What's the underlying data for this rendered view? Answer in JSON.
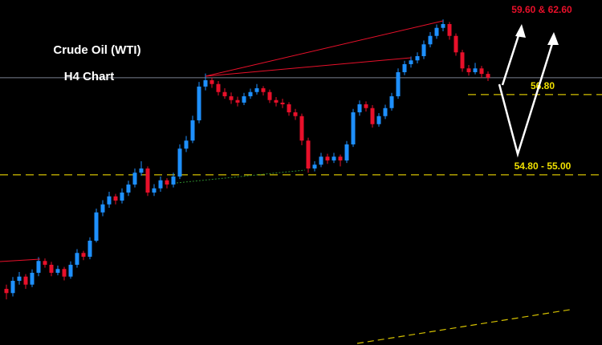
{
  "chart_data": {
    "type": "candlestick",
    "title": "Crude Oil (WTI)",
    "subtitle": "H4 Chart",
    "target_label": "59.60 & 62.60",
    "up_color": "#1e90ff",
    "down_color": "#e8102a",
    "ylim": [
      50.87,
      59.04
    ],
    "price_line": 57.2,
    "levels": [
      {
        "value": 56.8,
        "label": "56.80"
      },
      {
        "value": [
          54.8,
          55.0
        ],
        "label": "54.80 - 55.00"
      }
    ],
    "candles": [
      [
        52.2,
        52.3,
        51.95,
        52.1
      ],
      [
        52.1,
        52.48,
        52.02,
        52.39
      ],
      [
        52.39,
        52.6,
        52.3,
        52.49
      ],
      [
        52.49,
        52.55,
        52.2,
        52.3
      ],
      [
        52.3,
        52.66,
        52.24,
        52.58
      ],
      [
        52.58,
        52.95,
        52.5,
        52.86
      ],
      [
        52.86,
        52.92,
        52.7,
        52.77
      ],
      [
        52.77,
        52.84,
        52.5,
        52.58
      ],
      [
        52.58,
        52.75,
        52.52,
        52.67
      ],
      [
        52.67,
        52.72,
        52.4,
        52.49
      ],
      [
        52.49,
        52.85,
        52.44,
        52.77
      ],
      [
        52.77,
        53.14,
        52.7,
        53.05
      ],
      [
        53.05,
        53.1,
        52.88,
        52.96
      ],
      [
        52.96,
        53.42,
        52.9,
        53.34
      ],
      [
        53.34,
        54.1,
        53.3,
        54.01
      ],
      [
        54.01,
        54.3,
        53.92,
        54.2
      ],
      [
        54.2,
        54.5,
        54.12,
        54.39
      ],
      [
        54.39,
        54.45,
        54.2,
        54.29
      ],
      [
        54.29,
        54.58,
        54.22,
        54.48
      ],
      [
        54.48,
        54.76,
        54.4,
        54.67
      ],
      [
        54.67,
        55.05,
        54.6,
        54.95
      ],
      [
        54.95,
        55.22,
        54.88,
        55.05
      ],
      [
        55.05,
        55.1,
        54.4,
        54.48
      ],
      [
        54.48,
        54.68,
        54.4,
        54.58
      ],
      [
        54.58,
        54.86,
        54.5,
        54.77
      ],
      [
        54.77,
        54.82,
        54.58,
        54.67
      ],
      [
        54.67,
        54.95,
        54.6,
        54.86
      ],
      [
        54.86,
        55.62,
        54.8,
        55.52
      ],
      [
        55.52,
        55.82,
        55.44,
        55.71
      ],
      [
        55.71,
        56.3,
        55.65,
        56.19
      ],
      [
        56.19,
        57.1,
        56.12,
        56.99
      ],
      [
        56.99,
        57.3,
        56.9,
        57.14
      ],
      [
        57.14,
        57.2,
        56.96,
        57.05
      ],
      [
        57.05,
        57.12,
        56.78,
        56.86
      ],
      [
        56.86,
        56.95,
        56.7,
        56.76
      ],
      [
        56.76,
        56.85,
        56.58,
        56.67
      ],
      [
        56.67,
        56.75,
        56.52,
        56.61
      ],
      [
        56.61,
        56.84,
        56.55,
        56.76
      ],
      [
        56.76,
        56.94,
        56.7,
        56.86
      ],
      [
        56.86,
        57.05,
        56.8,
        56.95
      ],
      [
        56.95,
        57.0,
        56.78,
        56.86
      ],
      [
        56.86,
        56.92,
        56.6,
        56.67
      ],
      [
        56.67,
        56.74,
        56.52,
        56.61
      ],
      [
        56.61,
        56.7,
        56.48,
        56.57
      ],
      [
        56.57,
        56.62,
        56.3,
        56.38
      ],
      [
        56.38,
        56.46,
        56.2,
        56.29
      ],
      [
        56.29,
        56.35,
        55.6,
        55.71
      ],
      [
        55.71,
        55.78,
        54.95,
        55.05
      ],
      [
        55.05,
        55.22,
        54.98,
        55.14
      ],
      [
        55.14,
        55.42,
        55.08,
        55.33
      ],
      [
        55.33,
        55.4,
        55.16,
        55.24
      ],
      [
        55.24,
        55.42,
        55.18,
        55.33
      ],
      [
        55.33,
        55.38,
        55.1,
        55.24
      ],
      [
        55.24,
        55.7,
        55.18,
        55.62
      ],
      [
        55.62,
        56.46,
        55.56,
        56.38
      ],
      [
        56.38,
        56.66,
        56.3,
        56.57
      ],
      [
        56.57,
        56.64,
        56.4,
        56.48
      ],
      [
        56.48,
        56.55,
        56.02,
        56.1
      ],
      [
        56.1,
        56.36,
        56.04,
        56.29
      ],
      [
        56.29,
        56.56,
        56.22,
        56.48
      ],
      [
        56.48,
        56.84,
        56.42,
        56.76
      ],
      [
        56.76,
        57.42,
        56.7,
        57.33
      ],
      [
        57.33,
        57.6,
        57.26,
        57.52
      ],
      [
        57.52,
        57.7,
        57.44,
        57.61
      ],
      [
        57.61,
        57.8,
        57.54,
        57.71
      ],
      [
        57.71,
        58.08,
        57.64,
        57.99
      ],
      [
        57.99,
        58.28,
        57.92,
        58.19
      ],
      [
        58.19,
        58.46,
        58.12,
        58.38
      ],
      [
        58.38,
        58.58,
        58.3,
        58.47
      ],
      [
        58.47,
        58.52,
        58.1,
        58.19
      ],
      [
        58.19,
        58.25,
        57.72,
        57.8
      ],
      [
        57.8,
        57.86,
        57.34,
        57.42
      ],
      [
        57.42,
        57.5,
        57.25,
        57.33
      ],
      [
        57.33,
        57.55,
        57.28,
        57.42
      ],
      [
        57.42,
        57.48,
        57.2,
        57.29
      ],
      [
        57.29,
        57.35,
        57.12,
        57.2
      ]
    ]
  }
}
